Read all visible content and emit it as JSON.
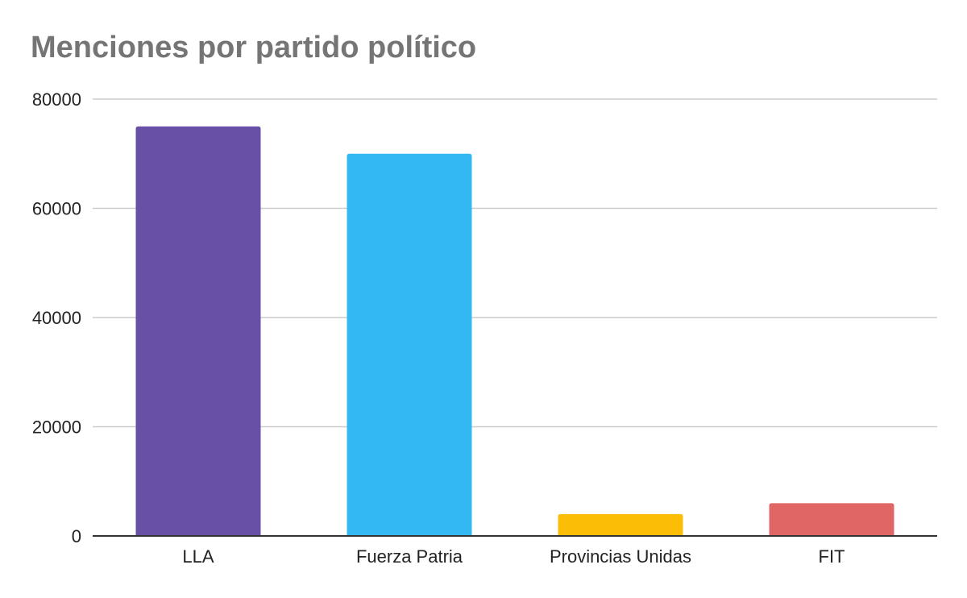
{
  "chart_data": {
    "type": "bar",
    "title": "Menciones por partido político",
    "xlabel": "",
    "ylabel": "",
    "categories": [
      "LLA",
      "Fuerza Patria",
      "Provincias Unidas",
      "FIT"
    ],
    "values": [
      75000,
      70000,
      4000,
      6000
    ],
    "colors": [
      "#6750a6",
      "#33b8f4",
      "#fbbd06",
      "#e06666"
    ],
    "ylim": [
      0,
      80000
    ],
    "yticks": [
      "0",
      "20000",
      "40000",
      "60000",
      "80000"
    ],
    "grid": true,
    "legend": "none"
  }
}
